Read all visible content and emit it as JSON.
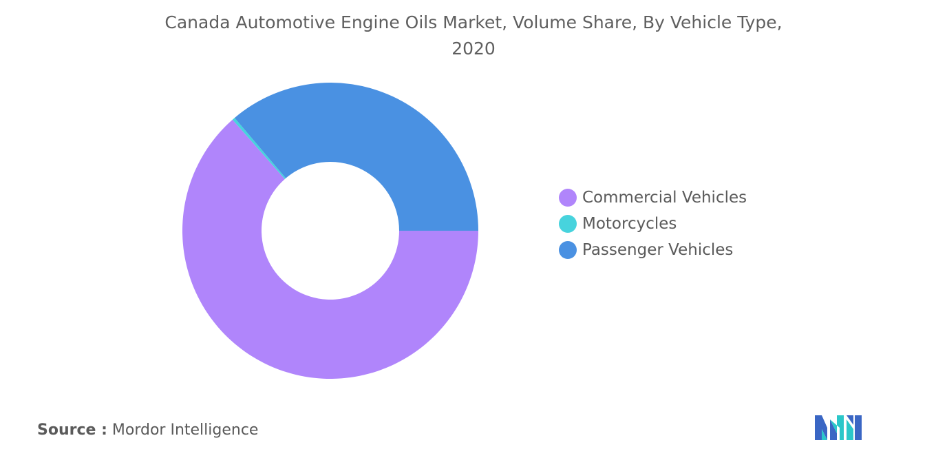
{
  "chart_data": {
    "type": "pie",
    "style": "donut",
    "title": "Canada Automotive Engine Oils Market, Volume Share, By Vehicle Type, 2020",
    "title_line1": "Canada Automotive Engine Oils Market, Volume Share, By Vehicle Type,",
    "title_line2": "2020",
    "series": [
      {
        "name": "Commercial Vehicles",
        "value": 63.5,
        "color": "#b085fb"
      },
      {
        "name": "Motorcycles",
        "value": 0.3,
        "color": "#47d3dd"
      },
      {
        "name": "Passenger Vehicles",
        "value": 36.2,
        "color": "#4a91e2"
      }
    ],
    "legend_position": "right"
  },
  "source": {
    "prefix": "Source :",
    "text": "Mordor Intelligence"
  },
  "logo": {
    "icon": "mordor-intelligence-logo",
    "colors": [
      "#3a66c4",
      "#2bc7c9"
    ]
  }
}
